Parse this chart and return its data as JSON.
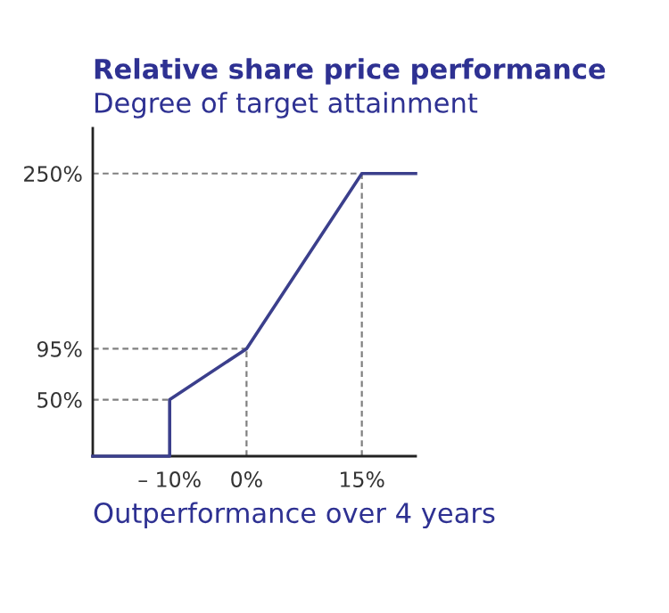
{
  "chart_data": {
    "type": "line",
    "title": "Relative share price performance",
    "subtitle": "Degree of target attainment",
    "xlabel": "Outperformance over 4 years",
    "x": [
      -20,
      -10,
      -10,
      0,
      15,
      22
    ],
    "series": [
      {
        "color": "#3b3f8c",
        "values": [
          0,
          0,
          50,
          95,
          250,
          250
        ]
      }
    ],
    "xlim": [
      -20,
      22
    ],
    "xticks": [
      {
        "value": -10,
        "label": "– 10%"
      },
      {
        "value": 0,
        "label": "0%"
      },
      {
        "value": 15,
        "label": "15%"
      }
    ],
    "ylim": [
      0,
      290
    ],
    "yticks": [
      {
        "value": 50,
        "label": "50%"
      },
      {
        "value": 95,
        "label": "95%"
      },
      {
        "value": 250,
        "label": "250%"
      }
    ],
    "ref_lines": [
      {
        "axis": "y",
        "value": 50,
        "color": "#808080",
        "line_style": "dashed"
      },
      {
        "axis": "y",
        "value": 95,
        "color": "#808080",
        "line_style": "dashed"
      },
      {
        "axis": "y",
        "value": 250,
        "color": "#808080",
        "line_style": "dashed"
      },
      {
        "axis": "x",
        "value": 0,
        "color": "#808080",
        "line_style": "dashed"
      },
      {
        "axis": "x",
        "value": 15,
        "color": "#808080",
        "line_style": "dashed"
      }
    ],
    "grid": false,
    "legend": false,
    "marker": "none",
    "line_style": "solid"
  }
}
